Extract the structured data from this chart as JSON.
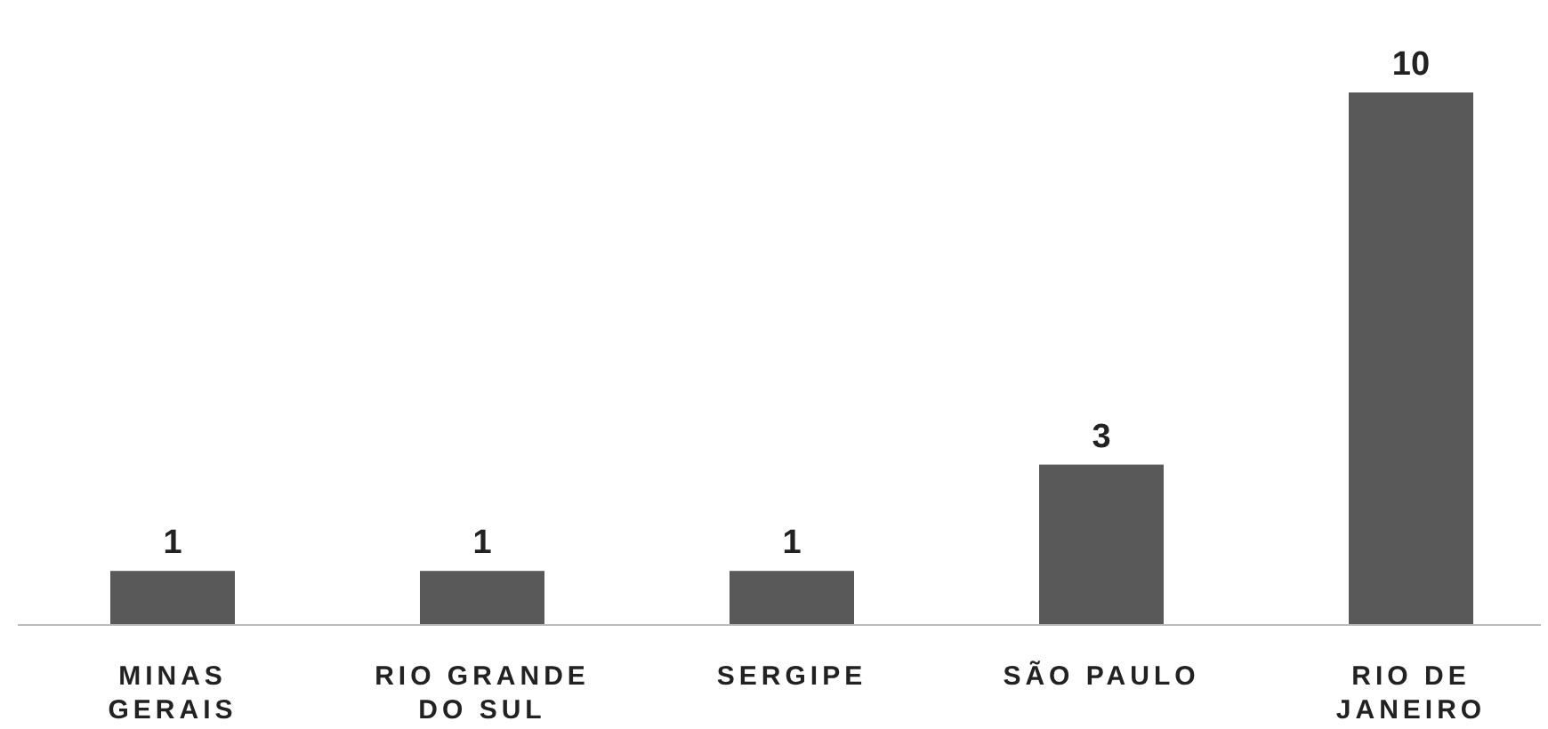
{
  "chart_data": {
    "type": "bar",
    "categories": [
      "MINAS GERAIS",
      "RIO GRANDE DO SUL",
      "SERGIPE",
      "SÃO PAULO",
      "RIO DE JANEIRO"
    ],
    "values": [
      1,
      1,
      1,
      3,
      10
    ],
    "color": "#595959",
    "data_labels": true
  }
}
